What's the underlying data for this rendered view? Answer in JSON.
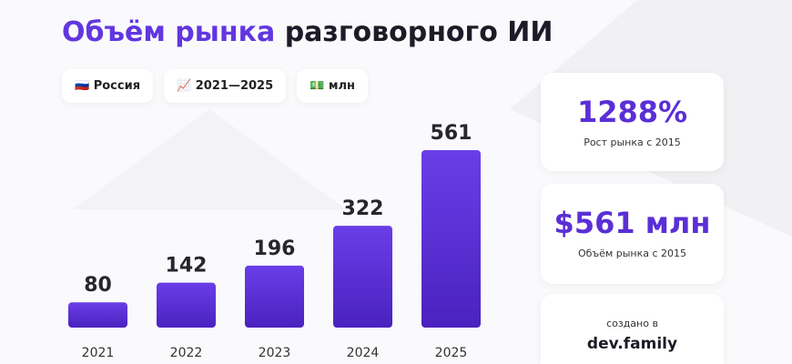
{
  "header": {
    "title_highlight": "Объём рынка",
    "title_rest": "разговорного ИИ"
  },
  "filters": [
    "🇷🇺 Россия",
    "📈 2021—2025",
    "💵 млн"
  ],
  "chart_data": {
    "type": "bar",
    "categories": [
      "2021",
      "2022",
      "2023",
      "2024",
      "2025"
    ],
    "values": [
      80,
      142,
      196,
      322,
      561
    ],
    "color": "#5a30d8"
  },
  "stats": [
    {
      "value": "1288%",
      "label": "Рост рынка с 2015"
    },
    {
      "value": "$561 млн",
      "label": "Объём рынка с 2015"
    }
  ],
  "credit": {
    "text": "создано в",
    "brand": "dev.family"
  }
}
